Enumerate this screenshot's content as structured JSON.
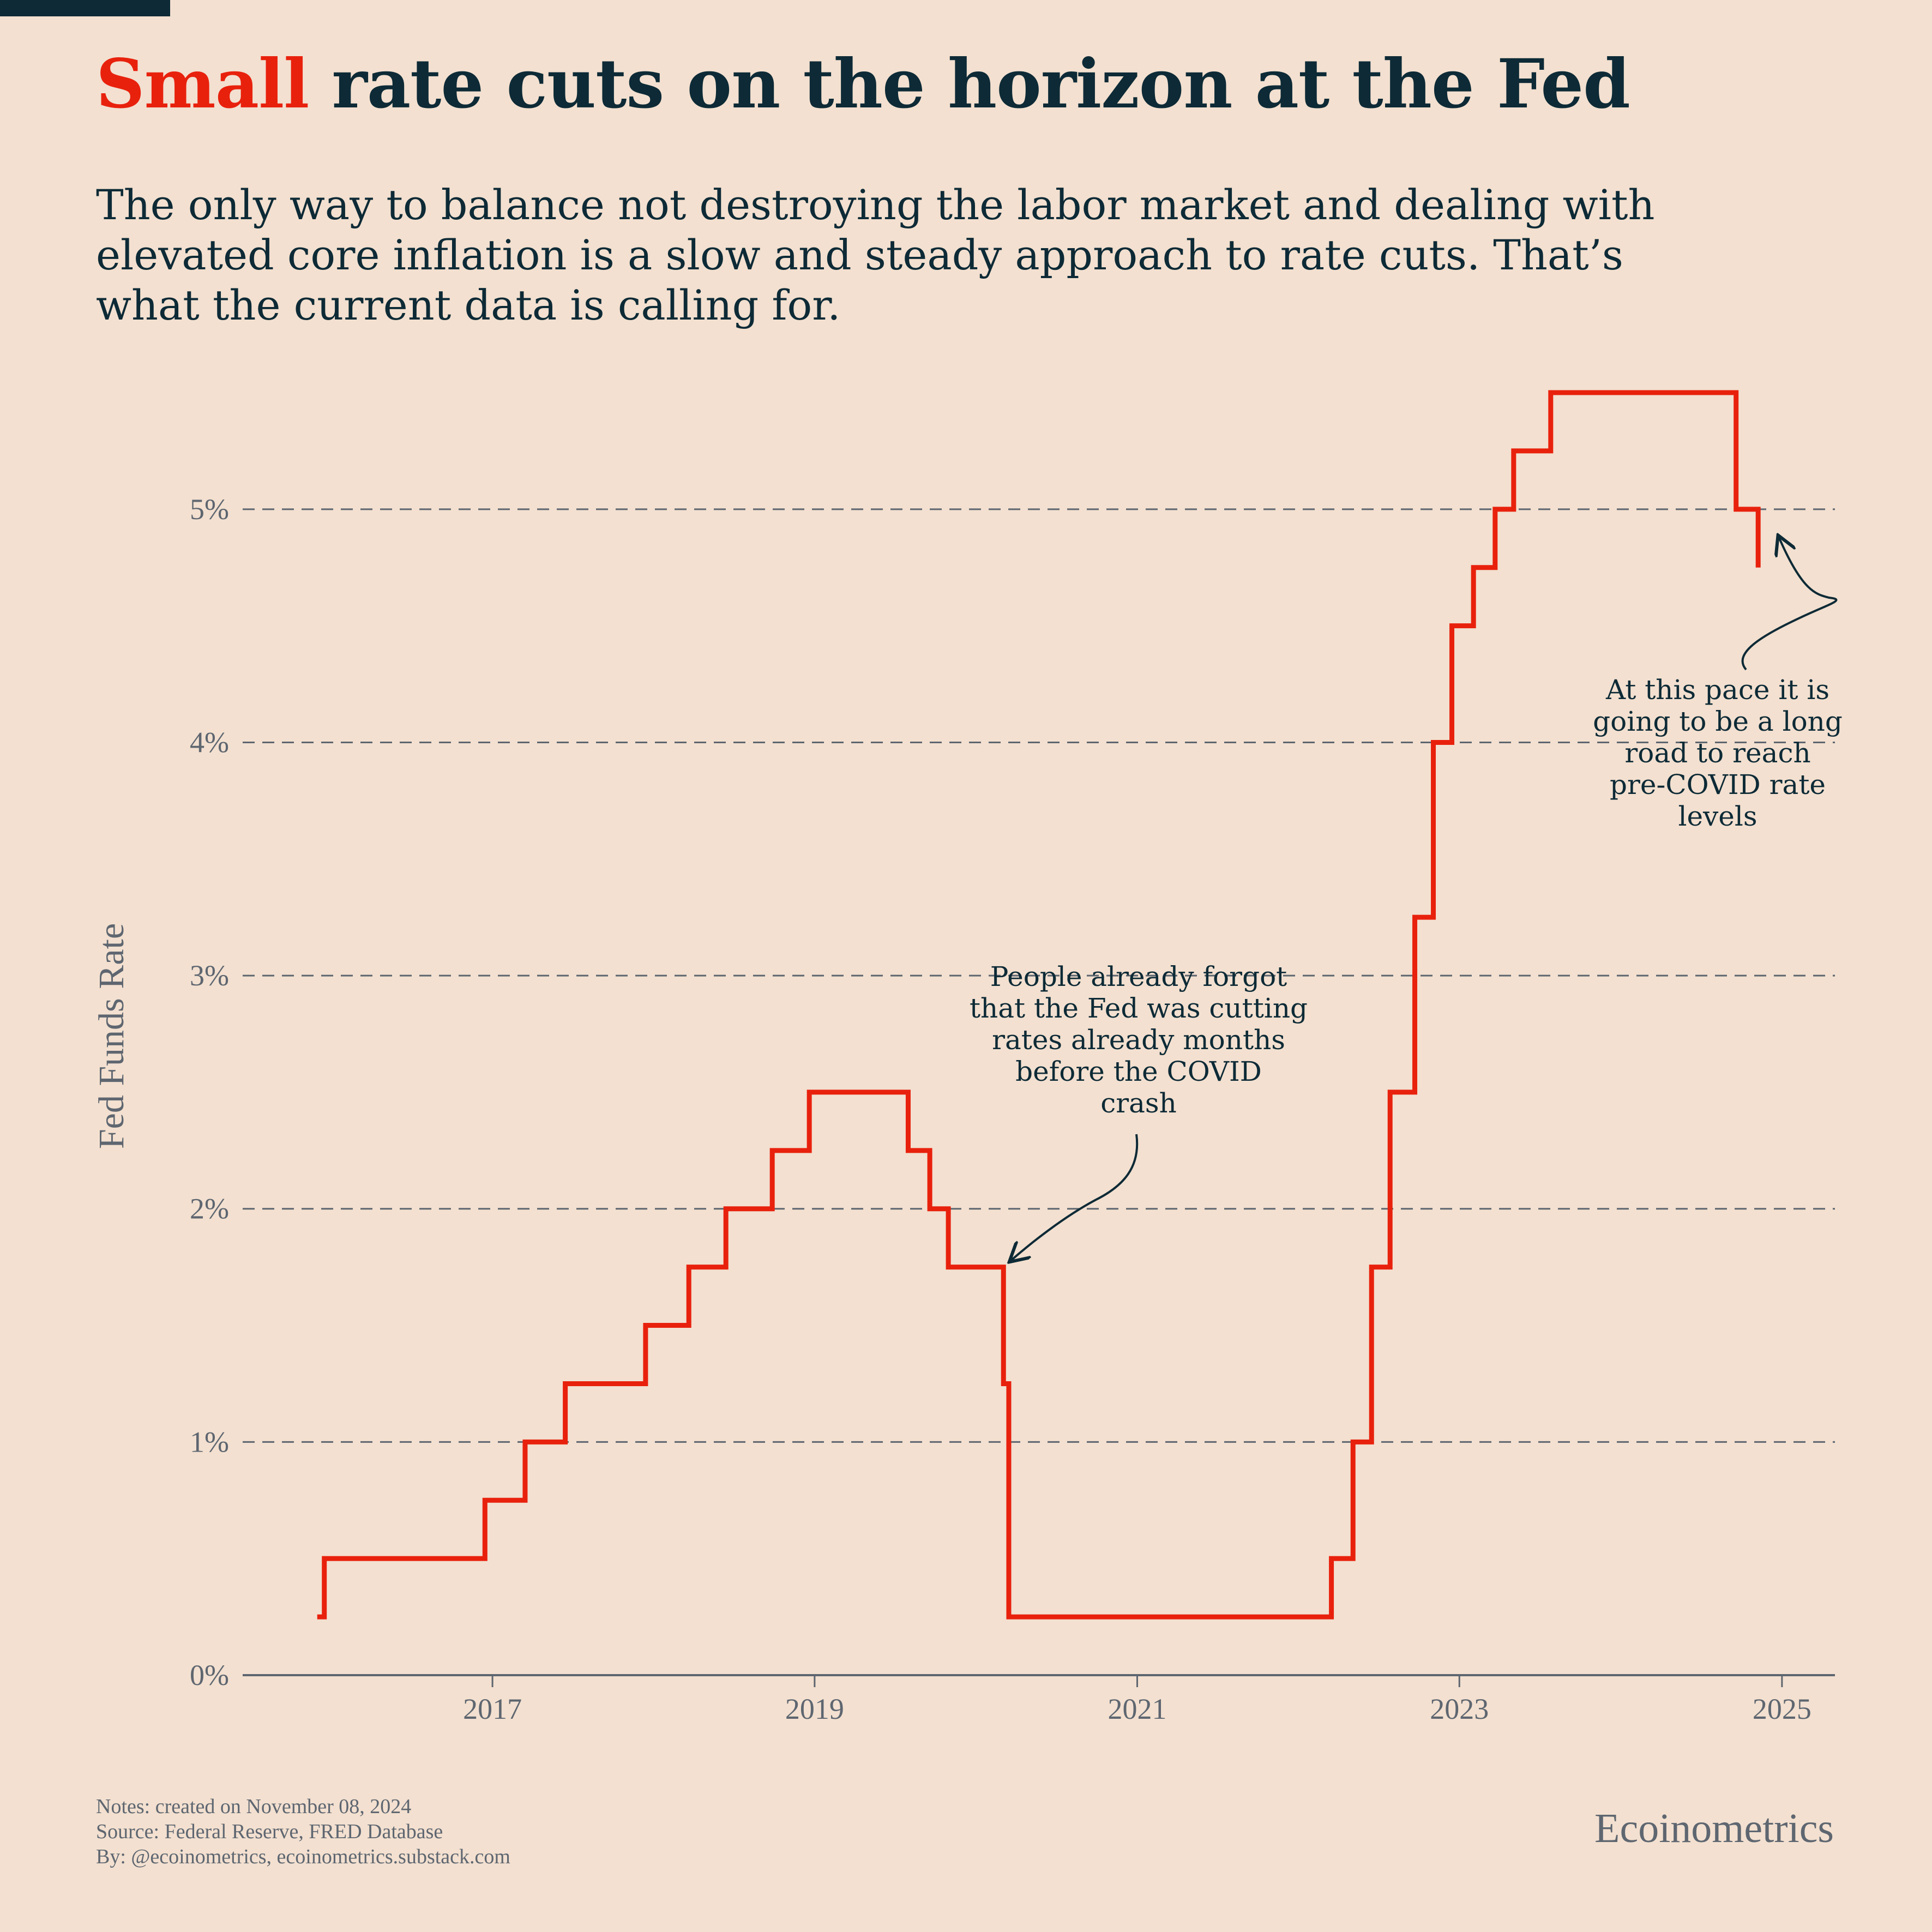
{
  "header": {
    "title_highlight": "Small",
    "title_rest": " rate cuts on the horizon at the Fed",
    "subtitle": "The only way to balance not destroying the labor market and dealing with elevated core inflation is a slow and steady approach to rate cuts. That’s what the current data is calling for."
  },
  "footer": {
    "notes": [
      "Notes: created on November 08, 2024",
      "Source: Federal Reserve, FRED Database",
      "By: @ecoinometrics, ecoinometrics.substack.com"
    ],
    "brand": "Ecoinometrics"
  },
  "colors": {
    "background": "#f3e0d0",
    "accent": "#e8210d",
    "text_dark": "#0d2a36",
    "text_muted": "#5e6670",
    "grid": "#5e6670"
  },
  "chart_data": {
    "type": "line",
    "step": true,
    "ylabel": "Fed Funds Rate",
    "xlabel": "",
    "y_unit": "%",
    "ylim": [
      0,
      5.5
    ],
    "xlim": [
      "2015-06-15",
      "2025-05-01"
    ],
    "x_ticks": [
      "2017",
      "2019",
      "2021",
      "2023",
      "2025"
    ],
    "y_ticks": [
      0,
      1,
      2,
      3,
      4,
      5
    ],
    "y_tick_labels": [
      "0%",
      "1%",
      "2%",
      "3%",
      "4%",
      "5%"
    ],
    "grid": "horizontal dashed",
    "series": [
      {
        "color": "#e8210d",
        "points": [
          [
            "2015-12-01",
            0.25
          ],
          [
            "2015-12-17",
            0.5
          ],
          [
            "2016-12-15",
            0.75
          ],
          [
            "2017-03-16",
            1.0
          ],
          [
            "2017-06-15",
            1.25
          ],
          [
            "2017-12-14",
            1.5
          ],
          [
            "2018-03-22",
            1.75
          ],
          [
            "2018-06-14",
            2.0
          ],
          [
            "2018-09-27",
            2.25
          ],
          [
            "2018-12-20",
            2.5
          ],
          [
            "2019-08-01",
            2.25
          ],
          [
            "2019-09-19",
            2.0
          ],
          [
            "2019-10-31",
            1.75
          ],
          [
            "2020-03-04",
            1.25
          ],
          [
            "2020-03-16",
            0.25
          ],
          [
            "2022-03-17",
            0.5
          ],
          [
            "2022-05-05",
            1.0
          ],
          [
            "2022-06-16",
            1.75
          ],
          [
            "2022-07-28",
            2.5
          ],
          [
            "2022-09-22",
            3.25
          ],
          [
            "2022-11-03",
            4.0
          ],
          [
            "2022-12-15",
            4.5
          ],
          [
            "2023-02-02",
            4.75
          ],
          [
            "2023-03-23",
            5.0
          ],
          [
            "2023-05-04",
            5.25
          ],
          [
            "2023-07-27",
            5.5
          ],
          [
            "2024-09-19",
            5.0
          ],
          [
            "2024-11-08",
            4.75
          ]
        ]
      }
    ],
    "annotations": [
      {
        "text": [
          "People already forgot",
          "that the Fed was cutting",
          "rates already months",
          "before the COVID",
          "crash"
        ],
        "target": [
          "2020-03-01",
          1.75
        ]
      },
      {
        "text": [
          "At this pace it is",
          "going to be a long",
          "road to reach",
          "pre-COVID rate",
          "levels"
        ],
        "target": [
          "2024-11-08",
          4.88
        ]
      }
    ]
  }
}
